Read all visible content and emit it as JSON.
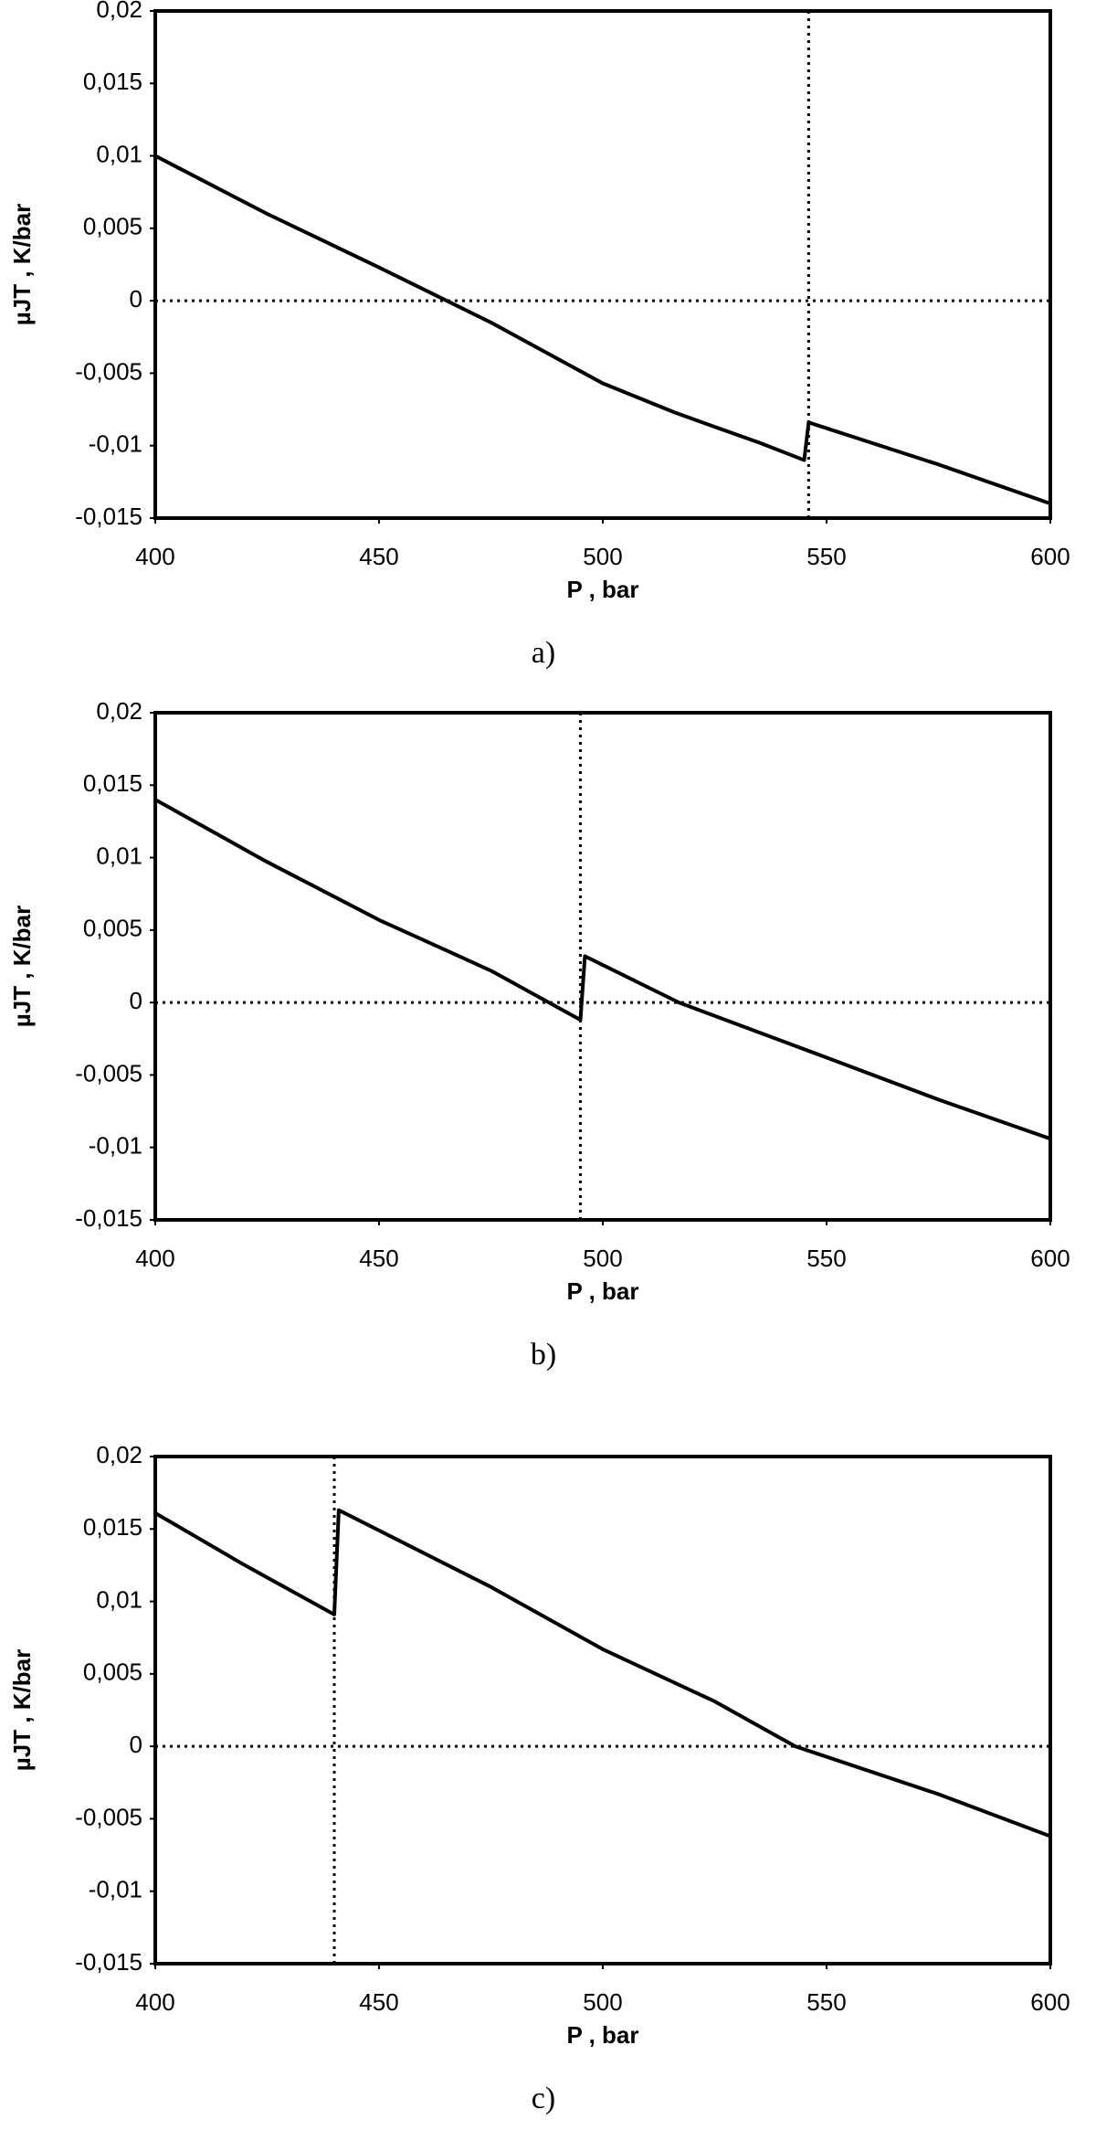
{
  "chart_data": [
    {
      "type": "line",
      "xlabel": "P , bar",
      "ylabel": "µJT , K/bar",
      "caption": "a)",
      "x": [
        400,
        425,
        450,
        475,
        500,
        516,
        525,
        535,
        545,
        546,
        575,
        600
      ],
      "values": [
        0.01,
        0.006,
        0.0023,
        -0.0015,
        -0.0057,
        -0.0077,
        -0.0087,
        -0.0098,
        -0.011,
        -0.0084,
        -0.0113,
        -0.014
      ],
      "color": "#000000",
      "xlim": [
        400,
        600
      ],
      "ylim": [
        -0.015,
        0.02
      ],
      "xticks": [
        400,
        450,
        500,
        550,
        600
      ],
      "yticks": [
        {
          "value": -0.015,
          "label": "-0,015"
        },
        {
          "value": -0.01,
          "label": "-0,01"
        },
        {
          "value": -0.005,
          "label": "-0,005"
        },
        0,
        {
          "value": 0.005,
          "label": "0,005"
        },
        {
          "value": 0.01,
          "label": "0,01"
        },
        {
          "value": 0.015,
          "label": "0,015"
        },
        {
          "value": 0.02,
          "label": "0,02"
        }
      ],
      "vline": 546,
      "hline": 0
    },
    {
      "type": "line",
      "xlabel": "P , bar",
      "ylabel": "µJT , K/bar",
      "caption": "b)",
      "x": [
        400,
        425,
        450,
        475,
        495,
        496,
        517,
        550,
        575,
        600
      ],
      "values": [
        0.014,
        0.0097,
        0.0057,
        0.0022,
        -0.0012,
        0.0032,
        0,
        -0.0038,
        -0.0067,
        -0.0094
      ],
      "color": "#000000",
      "xlim": [
        400,
        600
      ],
      "ylim": [
        -0.015,
        0.02
      ],
      "xticks": [
        400,
        450,
        500,
        550,
        600
      ],
      "yticks": [
        {
          "value": -0.015,
          "label": "-0,015"
        },
        {
          "value": -0.01,
          "label": "-0,01"
        },
        {
          "value": -0.005,
          "label": "-0,005"
        },
        0,
        {
          "value": 0.005,
          "label": "0,005"
        },
        {
          "value": 0.01,
          "label": "0,01"
        },
        {
          "value": 0.015,
          "label": "0,015"
        },
        {
          "value": 0.02,
          "label": "0,02"
        }
      ],
      "vline": 495,
      "hline": 0
    },
    {
      "type": "line",
      "xlabel": "P , bar",
      "ylabel": "µJT , K/bar",
      "caption": "c)",
      "x": [
        400,
        420,
        440,
        441,
        475,
        500,
        525,
        543,
        575,
        600
      ],
      "values": [
        0.0161,
        0.0125,
        0.0091,
        0.0163,
        0.011,
        0.0067,
        0.0031,
        0,
        -0.0033,
        -0.0062
      ],
      "color": "#000000",
      "xlim": [
        400,
        600
      ],
      "ylim": [
        -0.015,
        0.02
      ],
      "xticks": [
        400,
        450,
        500,
        550,
        600
      ],
      "yticks": [
        {
          "value": -0.015,
          "label": "-0,015"
        },
        {
          "value": -0.01,
          "label": "-0,01"
        },
        {
          "value": -0.005,
          "label": "-0,005"
        },
        0,
        {
          "value": 0.005,
          "label": "0,005"
        },
        {
          "value": 0.01,
          "label": "0,01"
        },
        {
          "value": 0.015,
          "label": "0,015"
        },
        {
          "value": 0.02,
          "label": "0,02"
        }
      ],
      "vline": 440,
      "hline": 0
    }
  ]
}
